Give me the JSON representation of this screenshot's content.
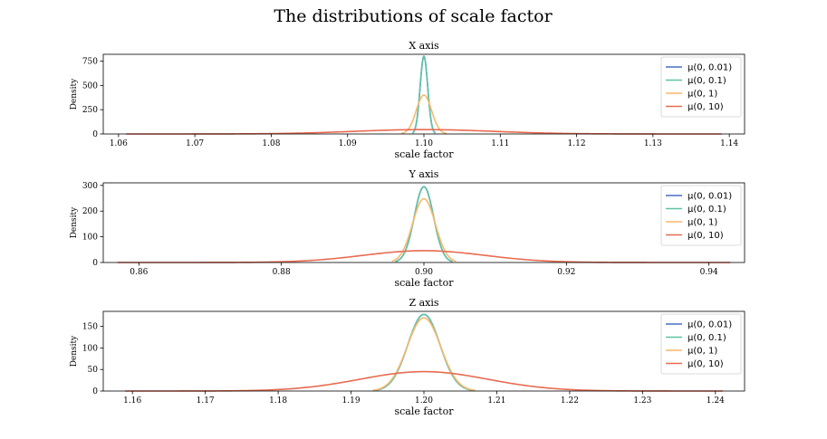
{
  "title": "The distributions of scale factor",
  "chart_data": [
    {
      "type": "line",
      "title": "X axis",
      "xlabel": "scale factor",
      "ylabel": "Density",
      "xlim": [
        1.058,
        1.142
      ],
      "ylim": [
        0,
        820
      ],
      "xticks": [
        1.06,
        1.07,
        1.08,
        1.09,
        1.1,
        1.11,
        1.12,
        1.13,
        1.14
      ],
      "xtick_labels": [
        "1.06",
        "1.07",
        "1.08",
        "1.09",
        "1.10",
        "1.11",
        "1.12",
        "1.13",
        "1.14"
      ],
      "yticks": [
        0,
        250,
        500,
        750
      ],
      "ytick_labels": [
        "0",
        "250",
        "500",
        "750"
      ],
      "legend": {
        "position": "top-right"
      },
      "series": [
        {
          "name": "μ(0, 0.01)",
          "color": "#4a6fc1",
          "mean": 1.1,
          "peak": 800,
          "sd": 0.0005,
          "range": [
            1.0985,
            1.1015
          ]
        },
        {
          "name": "μ(0, 0.1)",
          "color": "#5ec3a6",
          "mean": 1.1,
          "peak": 800,
          "sd": 0.0005,
          "range": [
            1.0985,
            1.1015
          ]
        },
        {
          "name": "μ(0, 1)",
          "color": "#f7b96c",
          "mean": 1.1,
          "peak": 400,
          "sd": 0.001,
          "range": [
            1.097,
            1.103
          ]
        },
        {
          "name": "μ(0, 10)",
          "color": "#e86b51",
          "mean": 1.1,
          "peak": 45,
          "sd": 0.009,
          "range": [
            1.061,
            1.139
          ]
        }
      ]
    },
    {
      "type": "line",
      "title": "Y axis",
      "xlabel": "scale factor",
      "ylabel": "Density",
      "xlim": [
        0.855,
        0.945
      ],
      "ylim": [
        0,
        310
      ],
      "xticks": [
        0.86,
        0.88,
        0.9,
        0.92,
        0.94
      ],
      "xtick_labels": [
        "0.86",
        "0.88",
        "0.90",
        "0.92",
        "0.94"
      ],
      "yticks": [
        0,
        100,
        200,
        300
      ],
      "ytick_labels": [
        "0",
        "100",
        "200",
        "300"
      ],
      "legend": {
        "position": "top-right"
      },
      "series": [
        {
          "name": "μ(0, 0.01)",
          "color": "#4a6fc1",
          "mean": 0.9,
          "peak": 295,
          "sd": 0.00135,
          "range": [
            0.896,
            0.904
          ]
        },
        {
          "name": "μ(0, 0.1)",
          "color": "#5ec3a6",
          "mean": 0.9,
          "peak": 295,
          "sd": 0.00135,
          "range": [
            0.896,
            0.904
          ]
        },
        {
          "name": "μ(0, 1)",
          "color": "#f7b96c",
          "mean": 0.9,
          "peak": 248,
          "sd": 0.0016,
          "range": [
            0.8955,
            0.9045
          ]
        },
        {
          "name": "μ(0, 10)",
          "color": "#e86b51",
          "mean": 0.9,
          "peak": 46,
          "sd": 0.0085,
          "range": [
            0.857,
            0.943
          ]
        }
      ]
    },
    {
      "type": "line",
      "title": "Z axis",
      "xlabel": "scale factor",
      "ylabel": "Density",
      "xlim": [
        1.156,
        1.244
      ],
      "ylim": [
        0,
        185
      ],
      "xticks": [
        1.16,
        1.17,
        1.18,
        1.19,
        1.2,
        1.21,
        1.22,
        1.23,
        1.24
      ],
      "xtick_labels": [
        "1.16",
        "1.17",
        "1.18",
        "1.19",
        "1.20",
        "1.21",
        "1.22",
        "1.23",
        "1.24"
      ],
      "yticks": [
        0,
        50,
        100,
        150
      ],
      "ytick_labels": [
        "0",
        "50",
        "100",
        "150"
      ],
      "legend": {
        "position": "top-right"
      },
      "series": [
        {
          "name": "μ(0, 0.01)",
          "color": "#4a6fc1",
          "mean": 1.2,
          "peak": 178,
          "sd": 0.0022,
          "range": [
            1.193,
            1.207
          ]
        },
        {
          "name": "μ(0, 0.1)",
          "color": "#5ec3a6",
          "mean": 1.2,
          "peak": 178,
          "sd": 0.0022,
          "range": [
            1.193,
            1.207
          ]
        },
        {
          "name": "μ(0, 1)",
          "color": "#f7b96c",
          "mean": 1.2,
          "peak": 170,
          "sd": 0.0023,
          "range": [
            1.193,
            1.207
          ]
        },
        {
          "name": "μ(0, 10)",
          "color": "#e86b51",
          "mean": 1.2,
          "peak": 45,
          "sd": 0.0088,
          "range": [
            1.159,
            1.241
          ]
        }
      ]
    }
  ]
}
